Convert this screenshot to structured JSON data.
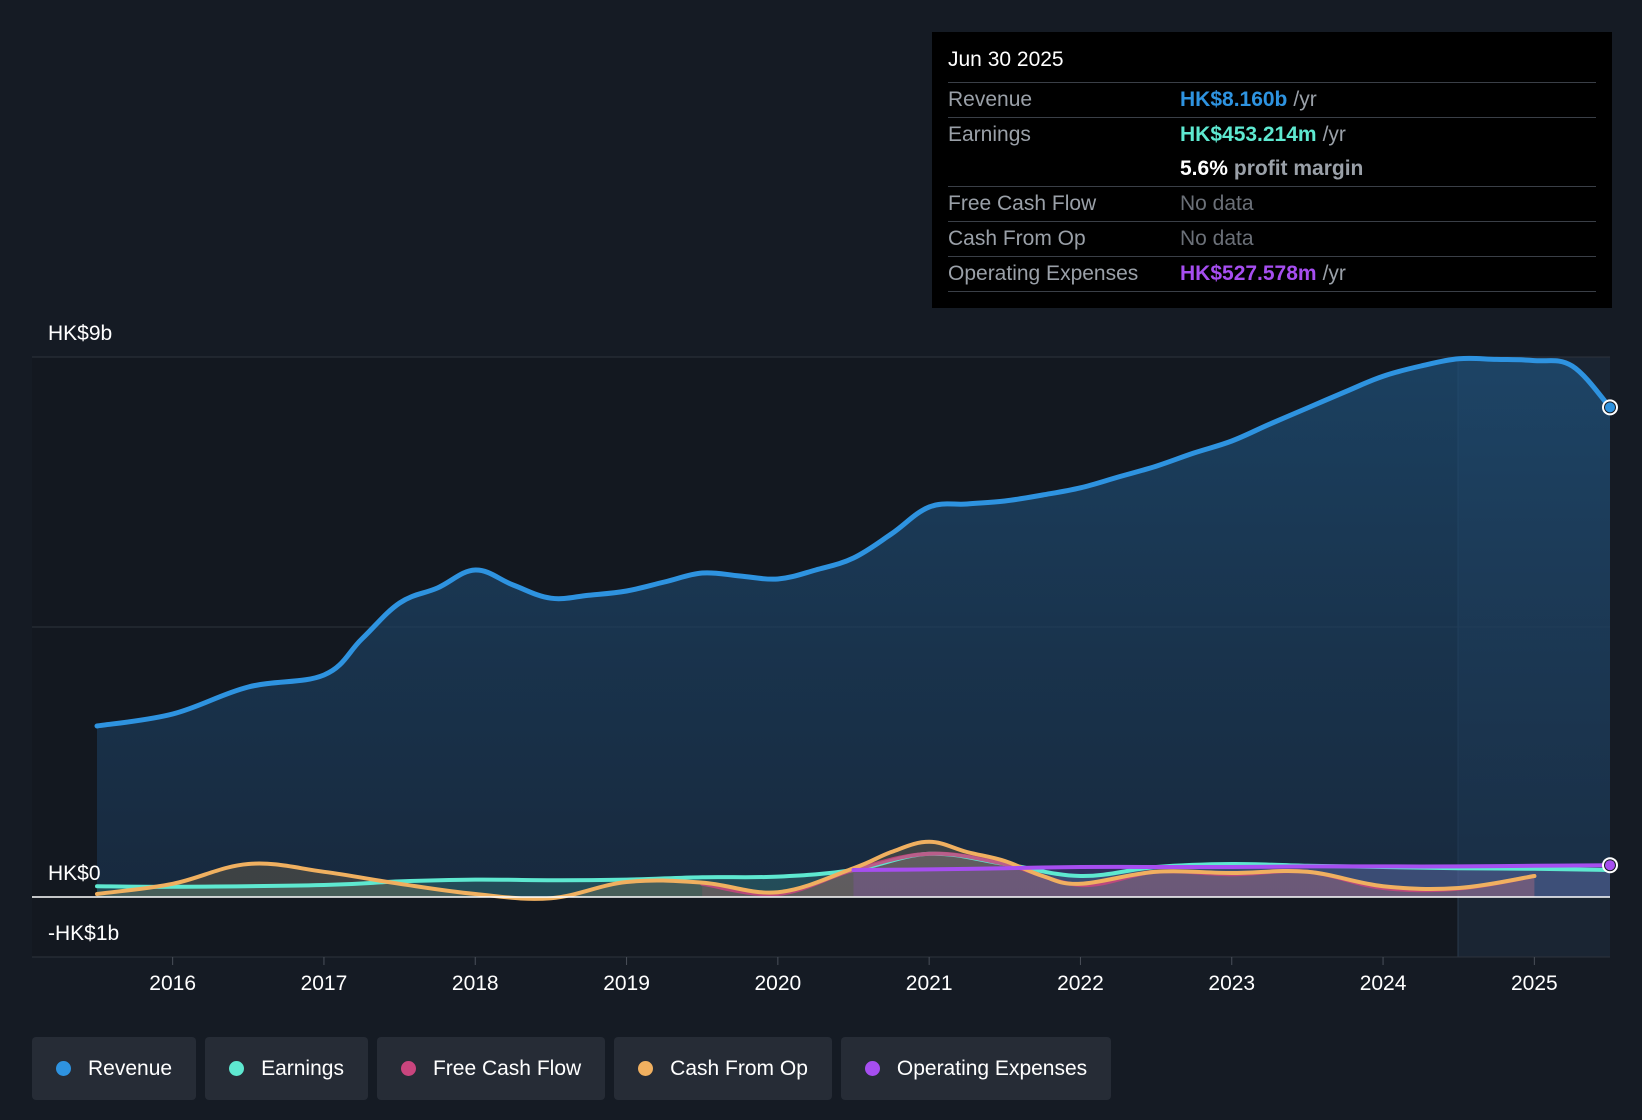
{
  "tooltip": {
    "date": "Jun 30 2025",
    "rows": {
      "revenue": {
        "label": "Revenue",
        "value": "HK$8.160b",
        "unit": "/yr"
      },
      "earnings": {
        "label": "Earnings",
        "value": "HK$453.214m",
        "unit": "/yr"
      },
      "margin": {
        "value": "5.6%",
        "label": "profit margin"
      },
      "fcf": {
        "label": "Free Cash Flow",
        "value": "No data"
      },
      "cfo": {
        "label": "Cash From Op",
        "value": "No data"
      },
      "opex": {
        "label": "Operating Expenses",
        "value": "HK$527.578m",
        "unit": "/yr"
      }
    }
  },
  "legend": [
    {
      "label": "Revenue",
      "color": "#2e93e0"
    },
    {
      "label": "Earnings",
      "color": "#5ee8d0"
    },
    {
      "label": "Free Cash Flow",
      "color": "#c9457e"
    },
    {
      "label": "Cash From Op",
      "color": "#f0b060"
    },
    {
      "label": "Operating Expenses",
      "color": "#a64ef0"
    }
  ],
  "chart_data": {
    "type": "line",
    "y_axis_labels": [
      "HK$9b",
      "HK$0",
      "-HK$1b"
    ],
    "ylim": [
      -1,
      9
    ],
    "x_ticks": [
      "2016",
      "2017",
      "2018",
      "2019",
      "2020",
      "2021",
      "2022",
      "2023",
      "2024",
      "2025"
    ],
    "xlim": [
      2015.5,
      2025.5
    ],
    "grid": true,
    "colors": {
      "revenue": "#2e93e0",
      "earnings": "#5ee8d0",
      "fcf": "#c9457e",
      "cfo": "#f0b060",
      "opex": "#a64ef0"
    },
    "series": [
      {
        "name": "Revenue",
        "key": "revenue",
        "x": [
          2015.5,
          2016.0,
          2016.5,
          2017.0,
          2017.25,
          2017.5,
          2017.75,
          2018.0,
          2018.25,
          2018.5,
          2018.75,
          2019.0,
          2019.25,
          2019.5,
          2019.75,
          2020.0,
          2020.25,
          2020.5,
          2020.75,
          2021.0,
          2021.25,
          2021.5,
          2021.75,
          2022.0,
          2022.25,
          2022.5,
          2022.75,
          2023.0,
          2023.25,
          2023.5,
          2023.75,
          2024.0,
          2024.25,
          2024.5,
          2024.75,
          2025.0,
          2025.25,
          2025.5
        ],
        "values": [
          2.85,
          3.05,
          3.5,
          3.7,
          4.3,
          4.9,
          5.15,
          5.45,
          5.2,
          4.98,
          5.03,
          5.1,
          5.25,
          5.4,
          5.35,
          5.3,
          5.45,
          5.65,
          6.05,
          6.5,
          6.55,
          6.6,
          6.7,
          6.82,
          7.0,
          7.18,
          7.4,
          7.6,
          7.88,
          8.15,
          8.42,
          8.68,
          8.85,
          8.97,
          8.96,
          8.94,
          8.85,
          8.16
        ]
      },
      {
        "name": "Earnings",
        "key": "earnings",
        "x": [
          2015.5,
          2016.0,
          2017.0,
          2017.5,
          2018.0,
          2018.5,
          2019.0,
          2019.5,
          2020.0,
          2020.5,
          2021.0,
          2021.5,
          2022.0,
          2022.5,
          2023.0,
          2023.5,
          2024.0,
          2024.5,
          2025.0,
          2025.5
        ],
        "values": [
          0.18,
          0.17,
          0.2,
          0.26,
          0.29,
          0.28,
          0.29,
          0.33,
          0.34,
          0.45,
          0.72,
          0.55,
          0.35,
          0.5,
          0.55,
          0.52,
          0.5,
          0.48,
          0.47,
          0.45
        ]
      },
      {
        "name": "Free Cash Flow",
        "key": "fcf",
        "x": [
          2019.5,
          2020.0,
          2020.5,
          2021.0,
          2021.5,
          2022.0,
          2022.5,
          2023.0,
          2023.5,
          2024.0,
          2024.5,
          2025.0
        ],
        "values": [
          0.22,
          0.05,
          0.45,
          0.72,
          0.55,
          0.2,
          0.42,
          0.38,
          0.42,
          0.15,
          0.14,
          0.35
        ]
      },
      {
        "name": "Cash From Op",
        "key": "cfo",
        "x": [
          2015.5,
          2016.0,
          2016.5,
          2017.0,
          2017.5,
          2018.0,
          2018.5,
          2019.0,
          2019.5,
          2020.0,
          2020.5,
          2020.75,
          2021.0,
          2021.25,
          2021.5,
          2021.75,
          2022.0,
          2022.5,
          2023.0,
          2023.5,
          2024.0,
          2024.5,
          2025.0
        ],
        "values": [
          0.05,
          0.22,
          0.55,
          0.42,
          0.22,
          0.05,
          -0.02,
          0.25,
          0.24,
          0.08,
          0.48,
          0.75,
          0.92,
          0.75,
          0.6,
          0.35,
          0.22,
          0.42,
          0.4,
          0.42,
          0.18,
          0.15,
          0.35
        ]
      },
      {
        "name": "Operating Expenses",
        "key": "opex",
        "x": [
          2020.5,
          2021.0,
          2021.5,
          2022.0,
          2022.5,
          2023.0,
          2023.5,
          2024.0,
          2024.5,
          2025.0,
          2025.5
        ],
        "values": [
          0.45,
          0.46,
          0.48,
          0.5,
          0.5,
          0.5,
          0.51,
          0.51,
          0.51,
          0.52,
          0.53
        ]
      }
    ]
  }
}
